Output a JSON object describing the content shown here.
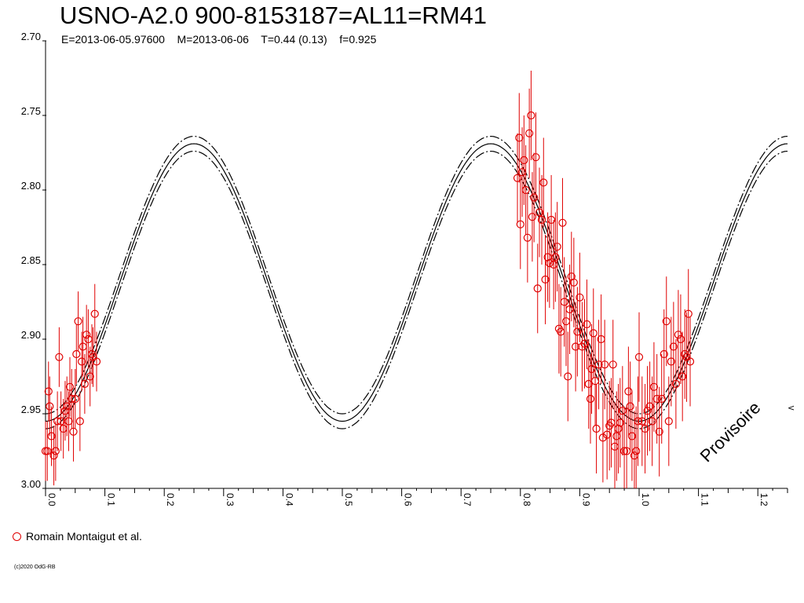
{
  "title": "USNO-A2.0 900-8153187=AL11=RM41",
  "subtitle": "E=2013-06-05.97600    M=2013-06-06    T=0.44 (0.13)    f=0.925",
  "legend": [
    {
      "label": "Romain Montaigut et al.",
      "color": "#e00000"
    }
  ],
  "watermark": "Provisoire",
  "credit": "(c)2020 OdG-RB",
  "edge_marker": "<",
  "colors": {
    "points": "#e00000",
    "curves": "#000000",
    "axes": "#000000"
  },
  "chart_data": {
    "type": "scatter",
    "title": "USNO-A2.0 900-8153187=AL11=RM41",
    "xlabel": "",
    "ylabel": "",
    "xlim": [
      0,
      1.25
    ],
    "ylim": [
      2.7,
      3.0
    ],
    "y_inverted": true,
    "x_ticks": [
      "0.0",
      "0.1",
      "0.2",
      "0.3",
      "0.4",
      "0.5",
      "0.6",
      "0.7",
      "0.8",
      "0.9",
      "1.0",
      "1.1",
      "1.2"
    ],
    "y_ticks": [
      "2.70",
      "2.75",
      "2.80",
      "2.85",
      "2.90",
      "2.95",
      "3.00"
    ],
    "grid": false,
    "legend_position": "bottom-left",
    "model": {
      "type": "sinusoid",
      "period_in_phase": 0.5,
      "mean_mag": 2.862,
      "amplitude": 0.093,
      "band_offset": 0.005,
      "minimum_at_phase": 0.0,
      "curves": [
        "fit",
        "upper-envelope (dashed)",
        "lower-envelope (dashed)"
      ]
    },
    "series": [
      {
        "name": "Romain Montaigut et al.",
        "points": [
          [
            0.0,
            2.975,
            0.02
          ],
          [
            0.003,
            2.975,
            0.02
          ],
          [
            0.005,
            2.935,
            0.02
          ],
          [
            0.007,
            2.945,
            0.02
          ],
          [
            0.01,
            2.965,
            0.02
          ],
          [
            0.014,
            2.978,
            0.02
          ],
          [
            0.017,
            2.975,
            0.02
          ],
          [
            0.02,
            2.955,
            0.02
          ],
          [
            0.023,
            2.912,
            0.02
          ],
          [
            0.026,
            2.955,
            0.02
          ],
          [
            0.03,
            2.96,
            0.02
          ],
          [
            0.033,
            2.948,
            0.02
          ],
          [
            0.036,
            2.945,
            0.02
          ],
          [
            0.039,
            2.955,
            0.02
          ],
          [
            0.041,
            2.932,
            0.02
          ],
          [
            0.044,
            2.94,
            0.02
          ],
          [
            0.047,
            2.962,
            0.02
          ],
          [
            0.05,
            2.94,
            0.02
          ],
          [
            0.052,
            2.91,
            0.02
          ],
          [
            0.055,
            2.888,
            0.02
          ],
          [
            0.058,
            2.955,
            0.02
          ],
          [
            0.061,
            2.915,
            0.02
          ],
          [
            0.063,
            2.905,
            0.02
          ],
          [
            0.066,
            2.93,
            0.02
          ],
          [
            0.069,
            2.897,
            0.02
          ],
          [
            0.072,
            2.9,
            0.02
          ],
          [
            0.075,
            2.925,
            0.02
          ],
          [
            0.078,
            2.91,
            0.02
          ],
          [
            0.08,
            2.912,
            0.02
          ],
          [
            0.083,
            2.883,
            0.02
          ],
          [
            0.086,
            2.915,
            0.02
          ],
          [
            0.795,
            2.792,
            0.03
          ],
          [
            0.798,
            2.765,
            0.03
          ],
          [
            0.8,
            2.823,
            0.03
          ],
          [
            0.803,
            2.788,
            0.03
          ],
          [
            0.806,
            2.78,
            0.03
          ],
          [
            0.809,
            2.8,
            0.03
          ],
          [
            0.812,
            2.832,
            0.03
          ],
          [
            0.815,
            2.762,
            0.03
          ],
          [
            0.818,
            2.75,
            0.03
          ],
          [
            0.82,
            2.818,
            0.03
          ],
          [
            0.823,
            2.805,
            0.03
          ],
          [
            0.826,
            2.778,
            0.03
          ],
          [
            0.829,
            2.866,
            0.03
          ],
          [
            0.832,
            2.815,
            0.03
          ],
          [
            0.836,
            2.82,
            0.03
          ],
          [
            0.839,
            2.795,
            0.03
          ],
          [
            0.842,
            2.86,
            0.03
          ],
          [
            0.846,
            2.845,
            0.03
          ],
          [
            0.849,
            2.849,
            0.03
          ],
          [
            0.852,
            2.82,
            0.03
          ],
          [
            0.856,
            2.85,
            0.03
          ],
          [
            0.859,
            2.845,
            0.03
          ],
          [
            0.862,
            2.838,
            0.03
          ],
          [
            0.865,
            2.893,
            0.03
          ],
          [
            0.868,
            2.895,
            0.03
          ],
          [
            0.871,
            2.822,
            0.03
          ],
          [
            0.874,
            2.875,
            0.03
          ],
          [
            0.877,
            2.888,
            0.03
          ],
          [
            0.88,
            2.925,
            0.03
          ],
          [
            0.883,
            2.88,
            0.03
          ],
          [
            0.886,
            2.858,
            0.03
          ],
          [
            0.89,
            2.862,
            0.03
          ],
          [
            0.893,
            2.905,
            0.03
          ],
          [
            0.896,
            2.895,
            0.03
          ],
          [
            0.9,
            2.872,
            0.03
          ],
          [
            0.904,
            2.905,
            0.03
          ],
          [
            0.908,
            2.903,
            0.03
          ],
          [
            0.912,
            2.89,
            0.03
          ],
          [
            0.915,
            2.93,
            0.03
          ],
          [
            0.918,
            2.94,
            0.03
          ],
          [
            0.92,
            2.92,
            0.03
          ],
          [
            0.923,
            2.896,
            0.03
          ],
          [
            0.926,
            2.928,
            0.03
          ],
          [
            0.928,
            2.96,
            0.03
          ],
          [
            0.932,
            2.917,
            0.03
          ],
          [
            0.936,
            2.9,
            0.03
          ],
          [
            0.939,
            2.966,
            0.03
          ],
          [
            0.942,
            2.917,
            0.03
          ],
          [
            0.946,
            2.964,
            0.03
          ],
          [
            0.95,
            2.958,
            0.03
          ],
          [
            0.953,
            2.956,
            0.03
          ],
          [
            0.956,
            2.917,
            0.03
          ],
          [
            0.959,
            2.972,
            0.03
          ],
          [
            0.962,
            2.965,
            0.03
          ],
          [
            0.965,
            2.96,
            0.03
          ],
          [
            0.968,
            2.956,
            0.03
          ],
          [
            0.972,
            2.948,
            0.03
          ],
          [
            0.975,
            2.975,
            0.03
          ],
          [
            0.979,
            2.975,
            0.03
          ],
          [
            0.982,
            2.935,
            0.03
          ],
          [
            0.985,
            2.945,
            0.03
          ],
          [
            0.988,
            2.965,
            0.03
          ],
          [
            0.992,
            2.978,
            0.03
          ],
          [
            0.995,
            2.975,
            0.03
          ],
          [
            0.998,
            2.955,
            0.03
          ],
          [
            1.0,
            2.912,
            0.03
          ],
          [
            1.005,
            2.955,
            0.03
          ],
          [
            1.01,
            2.96,
            0.03
          ],
          [
            1.014,
            2.948,
            0.03
          ],
          [
            1.018,
            2.945,
            0.03
          ],
          [
            1.022,
            2.955,
            0.03
          ],
          [
            1.025,
            2.932,
            0.03
          ],
          [
            1.03,
            2.94,
            0.03
          ],
          [
            1.034,
            2.962,
            0.03
          ],
          [
            1.038,
            2.94,
            0.03
          ],
          [
            1.042,
            2.91,
            0.03
          ],
          [
            1.046,
            2.888,
            0.03
          ],
          [
            1.05,
            2.955,
            0.03
          ],
          [
            1.054,
            2.915,
            0.03
          ],
          [
            1.058,
            2.905,
            0.03
          ],
          [
            1.062,
            2.93,
            0.03
          ],
          [
            1.066,
            2.897,
            0.03
          ],
          [
            1.07,
            2.9,
            0.03
          ],
          [
            1.073,
            2.925,
            0.03
          ],
          [
            1.077,
            2.91,
            0.03
          ],
          [
            1.08,
            2.912,
            0.03
          ],
          [
            1.083,
            2.883,
            0.03
          ],
          [
            1.086,
            2.915,
            0.03
          ]
        ]
      }
    ]
  }
}
